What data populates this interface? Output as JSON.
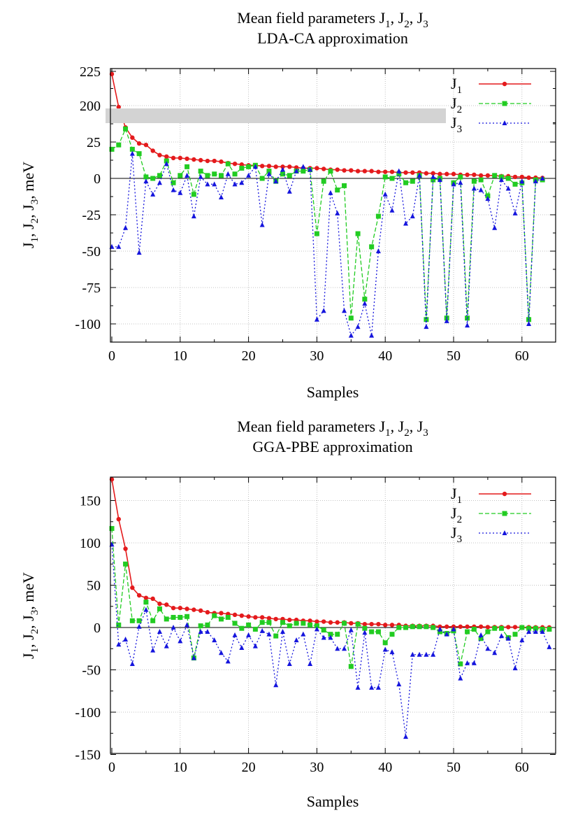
{
  "charts": [
    {
      "title_line1": "Mean field parameters J",
      "title_line2": "LDA-CA approximation",
      "xlabel": "Samples",
      "ylabel": "J1, J2, J3, meV",
      "xlim": [
        0,
        65
      ],
      "xticks": [
        "0",
        "10",
        "20",
        "30",
        "40",
        "50",
        "60"
      ],
      "yticks": [
        "225",
        "200",
        "25",
        "0",
        "-25",
        "-50",
        "-75",
        "-100"
      ],
      "legend": [
        "J1",
        "J2",
        "J3"
      ]
    },
    {
      "title_line1": "Mean field parameters J",
      "title_line2": "GGA-PBE approximation",
      "xlabel": "Samples",
      "ylabel": "J1, J2, J3, meV",
      "xlim": [
        0,
        65
      ],
      "xticks": [
        "0",
        "10",
        "20",
        "30",
        "40",
        "50",
        "60"
      ],
      "yticks": [
        "150",
        "100",
        "50",
        "0",
        "-50",
        "-100",
        "-150"
      ],
      "legend": [
        "J1",
        "J2",
        "J3"
      ]
    }
  ],
  "colors": {
    "J1": "#e41a1c",
    "J2": "#22cc22",
    "J3": "#1515dd"
  },
  "chart_data": [
    {
      "type": "line",
      "title": "Mean field parameters J1, J2, J3 LDA-CA approximation",
      "xlabel": "Samples",
      "ylabel": "J1, J2, J3, meV",
      "axis_break": "broken y axis: 200-225 shown above a gap, below break range -110 to 50",
      "ylim": [
        -110,
        225
      ],
      "legend_position": "top-right",
      "series": [
        {
          "name": "J1",
          "x": [
            0,
            1,
            2,
            3,
            4,
            5,
            6,
            7,
            8,
            9,
            10,
            11,
            12,
            13,
            14,
            15,
            16,
            17,
            18,
            19,
            20,
            21,
            22,
            23,
            24,
            25,
            26,
            27,
            28,
            29,
            30,
            31,
            32,
            33,
            34,
            35,
            36,
            37,
            38,
            39,
            40,
            41,
            42,
            43,
            44,
            45,
            46,
            47,
            48,
            49,
            50,
            51,
            52,
            53,
            54,
            55,
            56,
            57,
            58,
            59,
            60,
            61,
            62,
            63
          ],
          "values": [
            223,
            199,
            35,
            28,
            24,
            23,
            19,
            16,
            15,
            14,
            14,
            13.5,
            13,
            12.5,
            12,
            12,
            11.5,
            10.5,
            10,
            9.5,
            9,
            9,
            8.5,
            8.5,
            8,
            8,
            8,
            7.5,
            7,
            7,
            7,
            6.5,
            6,
            6,
            5.5,
            5.5,
            5,
            5,
            5,
            4.5,
            4.5,
            4.5,
            4,
            4,
            4,
            4,
            3.5,
            3.5,
            3,
            3,
            3,
            2.5,
            2.5,
            2.5,
            2,
            2,
            2,
            1.5,
            1.5,
            1,
            1,
            0.5,
            0.5,
            0.3
          ]
        },
        {
          "name": "J2",
          "x": [
            0,
            1,
            2,
            3,
            4,
            5,
            6,
            7,
            8,
            9,
            10,
            11,
            12,
            13,
            14,
            15,
            16,
            17,
            18,
            19,
            20,
            21,
            22,
            23,
            24,
            25,
            26,
            27,
            28,
            29,
            30,
            31,
            32,
            33,
            34,
            35,
            36,
            37,
            38,
            39,
            40,
            41,
            42,
            43,
            44,
            45,
            46,
            47,
            48,
            49,
            50,
            51,
            52,
            53,
            54,
            55,
            56,
            57,
            58,
            59,
            60,
            61,
            62,
            63
          ],
          "values": [
            20,
            23,
            34,
            20,
            17,
            1,
            0,
            2,
            12,
            -3,
            2,
            8,
            -11,
            5,
            2,
            3,
            2,
            10,
            3,
            7,
            8,
            9,
            0,
            5,
            -2,
            3,
            2,
            5,
            5,
            6,
            -38,
            -2,
            5,
            -8,
            -5,
            -96,
            -38,
            -83,
            -47,
            -26,
            1,
            0,
            3,
            -3,
            -2,
            2,
            -97,
            -1,
            0,
            -96,
            -3,
            1,
            -96,
            -2,
            -1,
            -12,
            2,
            1,
            0,
            -4,
            -3,
            -97,
            -1,
            -1
          ]
        },
        {
          "name": "J3",
          "x": [
            0,
            1,
            2,
            3,
            4,
            5,
            6,
            7,
            8,
            9,
            10,
            11,
            12,
            13,
            14,
            15,
            16,
            17,
            18,
            19,
            20,
            21,
            22,
            23,
            24,
            25,
            26,
            27,
            28,
            29,
            30,
            31,
            32,
            33,
            34,
            35,
            36,
            37,
            38,
            39,
            40,
            41,
            42,
            43,
            44,
            45,
            46,
            47,
            48,
            49,
            50,
            51,
            52,
            53,
            54,
            55,
            56,
            57,
            58,
            59,
            60,
            61,
            62,
            63
          ],
          "values": [
            -47,
            -47,
            -34,
            17,
            -51,
            -2,
            -11,
            -3,
            10,
            -8,
            -10,
            2,
            -26,
            1,
            -4,
            -4,
            -13,
            3,
            -4,
            -3,
            2,
            8,
            -32,
            3,
            -2,
            6,
            -9,
            5,
            8,
            6,
            -97,
            -91,
            -10,
            -24,
            -91,
            -108,
            -102,
            -86,
            -108,
            -50,
            -11,
            -22,
            5,
            -31,
            -26,
            2,
            -102,
            1,
            -1,
            -98,
            -4,
            -3,
            -101,
            -7,
            -8,
            -14,
            -34,
            -1,
            -7,
            -24,
            -2,
            -100,
            -2,
            0
          ]
        }
      ]
    },
    {
      "type": "line",
      "title": "Mean field parameters J1, J2, J3 GGA-PBE approximation",
      "xlabel": "Samples",
      "ylabel": "J1, J2, J3, meV",
      "ylim": [
        -150,
        175
      ],
      "legend_position": "top-right",
      "series": [
        {
          "name": "J1",
          "x": [
            0,
            1,
            2,
            3,
            4,
            5,
            6,
            7,
            8,
            9,
            10,
            11,
            12,
            13,
            14,
            15,
            16,
            17,
            18,
            19,
            20,
            21,
            22,
            23,
            24,
            25,
            26,
            27,
            28,
            29,
            30,
            31,
            32,
            33,
            34,
            35,
            36,
            37,
            38,
            39,
            40,
            41,
            42,
            43,
            44,
            45,
            46,
            47,
            48,
            49,
            50,
            51,
            52,
            53,
            54,
            55,
            56,
            57,
            58,
            59,
            60,
            61,
            62,
            63,
            64
          ],
          "values": [
            175,
            128,
            93,
            47,
            38,
            35,
            34,
            28,
            27,
            23,
            23,
            22,
            21,
            20,
            18,
            17,
            17,
            16,
            15,
            14,
            13,
            12,
            12,
            11,
            10,
            10,
            9,
            9,
            8,
            8,
            7,
            7,
            6,
            6,
            6,
            5,
            5,
            4,
            4,
            4,
            3,
            3,
            3,
            2,
            2,
            2,
            2,
            2,
            1,
            1,
            1,
            1,
            1,
            1,
            1,
            0.5,
            0.5,
            0.5,
            0.5,
            0.5,
            0.3,
            0.3,
            0.2,
            0.2,
            0.1
          ]
        },
        {
          "name": "J2",
          "x": [
            0,
            1,
            2,
            3,
            4,
            5,
            6,
            7,
            8,
            9,
            10,
            11,
            12,
            13,
            14,
            15,
            16,
            17,
            18,
            19,
            20,
            21,
            22,
            23,
            24,
            25,
            26,
            27,
            28,
            29,
            30,
            31,
            32,
            33,
            34,
            35,
            36,
            37,
            38,
            39,
            40,
            41,
            42,
            43,
            44,
            45,
            46,
            47,
            48,
            49,
            50,
            51,
            52,
            53,
            54,
            55,
            56,
            57,
            58,
            59,
            60,
            61,
            62,
            63,
            64
          ],
          "values": [
            117,
            3,
            75,
            8,
            8,
            30,
            8,
            22,
            10,
            12,
            12,
            13,
            -36,
            2,
            3,
            14,
            10,
            12,
            5,
            -1,
            3,
            -2,
            6,
            6,
            -10,
            6,
            2,
            5,
            5,
            3,
            2,
            -3,
            -8,
            -8,
            5,
            -46,
            4,
            -1,
            -5,
            -5,
            -18,
            -8,
            0,
            0,
            1,
            1,
            1,
            0,
            -5,
            -7,
            -4,
            -43,
            -5,
            -2,
            -13,
            -5,
            -1,
            -1,
            -12,
            -8,
            0,
            -1,
            -1,
            -2,
            -2
          ]
        },
        {
          "name": "J3",
          "x": [
            0,
            1,
            2,
            3,
            4,
            5,
            6,
            7,
            8,
            9,
            10,
            11,
            12,
            13,
            14,
            15,
            16,
            17,
            18,
            19,
            20,
            21,
            22,
            23,
            24,
            25,
            26,
            27,
            28,
            29,
            30,
            31,
            32,
            33,
            34,
            35,
            36,
            37,
            38,
            39,
            40,
            41,
            42,
            43,
            44,
            45,
            46,
            47,
            48,
            49,
            50,
            51,
            52,
            53,
            54,
            55,
            56,
            57,
            58,
            59,
            60,
            61,
            62,
            63,
            64
          ],
          "values": [
            98,
            -20,
            -14,
            -43,
            1,
            21,
            -27,
            -5,
            -22,
            0,
            -16,
            3,
            -36,
            -5,
            -5,
            -15,
            -30,
            -40,
            -9,
            -24,
            -9,
            -22,
            -4,
            -8,
            -68,
            -5,
            -43,
            -15,
            -8,
            -43,
            -2,
            -12,
            -12,
            -25,
            -25,
            -3,
            -71,
            -6,
            -71,
            -71,
            -26,
            -29,
            -67,
            -129,
            -32,
            -32,
            -32,
            -32,
            -2,
            -8,
            -2,
            -60,
            -42,
            -42,
            -9,
            -25,
            -30,
            -10,
            -13,
            -48,
            -15,
            -5,
            -5,
            -5,
            -23
          ]
        }
      ]
    }
  ]
}
